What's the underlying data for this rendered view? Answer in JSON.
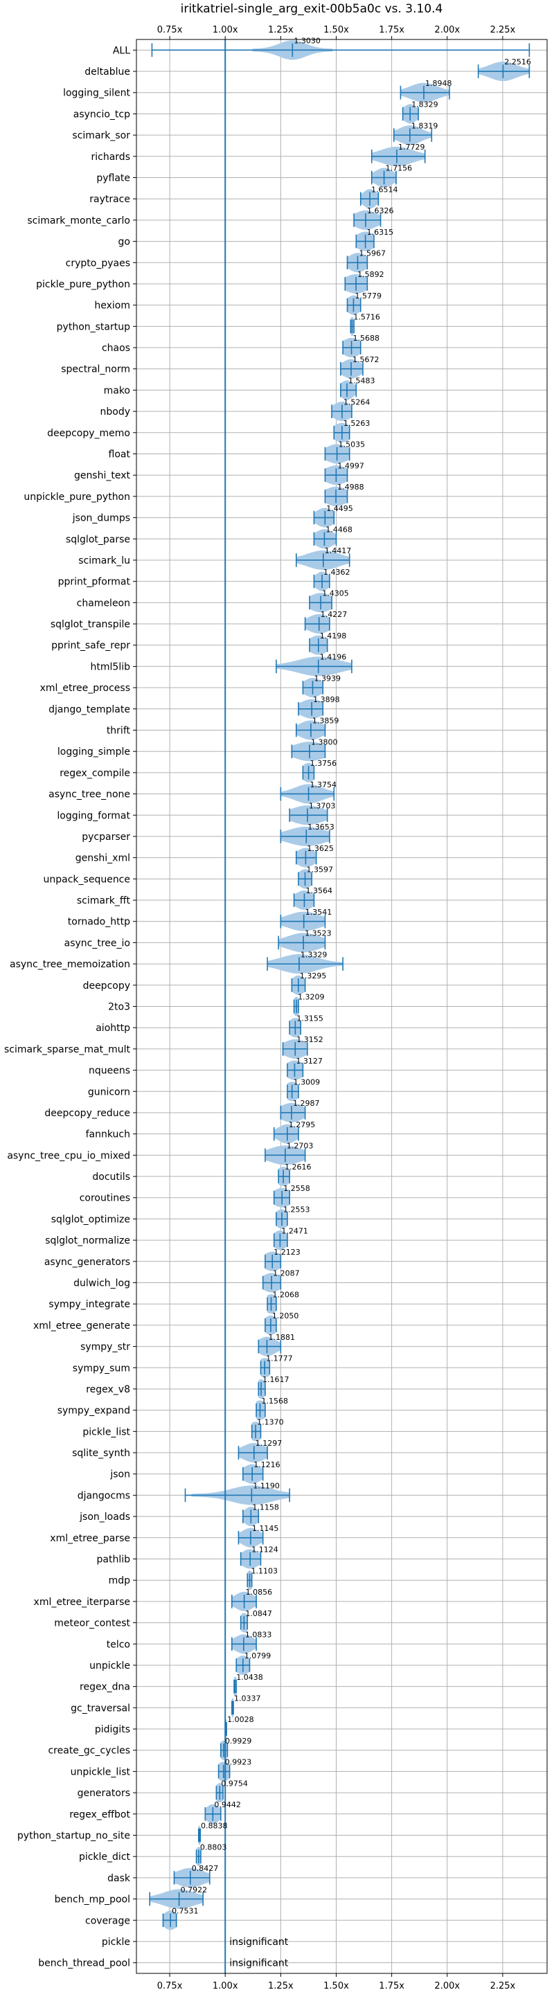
{
  "chart_data": {
    "type": "violin",
    "title": "iritkatriel-single_arg_exit-00b5a0c vs. 3.10.4",
    "xlim": [
      0.6,
      2.45
    ],
    "xticks": [
      0.75,
      1.0,
      1.25,
      1.5,
      1.75,
      2.0,
      2.25
    ],
    "xtick_labels": [
      "0.75x",
      "1.00x",
      "1.25x",
      "1.50x",
      "1.75x",
      "2.00x",
      "2.25x"
    ],
    "reference_line": 1.0,
    "grid": true,
    "colors": {
      "violin": "#a9cbe8",
      "line": "#1f77b4",
      "grid": "#b0b0b0"
    },
    "rows": [
      {
        "name": "ALL",
        "value": 1.303,
        "label": "1.3030",
        "min": 0.67,
        "max": 2.37,
        "spread": 0.06
      },
      {
        "name": "deltablue",
        "value": 2.2516,
        "label": "2.2516",
        "min": 2.14,
        "max": 2.37,
        "spread": 0.06
      },
      {
        "name": "logging_silent",
        "value": 1.8948,
        "label": "1.8948",
        "min": 1.79,
        "max": 2.01,
        "spread": 0.06
      },
      {
        "name": "asyncio_tcp",
        "value": 1.8329,
        "label": "1.8329",
        "min": 1.8,
        "max": 1.87,
        "spread": 0.03
      },
      {
        "name": "scimark_sor",
        "value": 1.8319,
        "label": "1.8319",
        "min": 1.76,
        "max": 1.93,
        "spread": 0.05
      },
      {
        "name": "richards",
        "value": 1.7729,
        "label": "1.7729",
        "min": 1.66,
        "max": 1.9,
        "spread": 0.07
      },
      {
        "name": "pyflate",
        "value": 1.7156,
        "label": "1.7156",
        "min": 1.66,
        "max": 1.77,
        "spread": 0.04
      },
      {
        "name": "raytrace",
        "value": 1.6514,
        "label": "1.6514",
        "min": 1.61,
        "max": 1.69,
        "spread": 0.03
      },
      {
        "name": "scimark_monte_carlo",
        "value": 1.6326,
        "label": "1.6326",
        "min": 1.58,
        "max": 1.7,
        "spread": 0.05
      },
      {
        "name": "go",
        "value": 1.6315,
        "label": "1.6315",
        "min": 1.59,
        "max": 1.67,
        "spread": 0.04
      },
      {
        "name": "crypto_pyaes",
        "value": 1.5967,
        "label": "1.5967",
        "min": 1.55,
        "max": 1.64,
        "spread": 0.04
      },
      {
        "name": "pickle_pure_python",
        "value": 1.5892,
        "label": "1.5892",
        "min": 1.54,
        "max": 1.64,
        "spread": 0.05
      },
      {
        "name": "hexiom",
        "value": 1.5779,
        "label": "1.5779",
        "min": 1.55,
        "max": 1.61,
        "spread": 0.03
      },
      {
        "name": "python_startup",
        "value": 1.5716,
        "label": "1.5716",
        "min": 1.565,
        "max": 1.58,
        "spread": 0.008
      },
      {
        "name": "chaos",
        "value": 1.5688,
        "label": "1.5688",
        "min": 1.53,
        "max": 1.61,
        "spread": 0.04
      },
      {
        "name": "spectral_norm",
        "value": 1.5672,
        "label": "1.5672",
        "min": 1.52,
        "max": 1.62,
        "spread": 0.04
      },
      {
        "name": "mako",
        "value": 1.5483,
        "label": "1.5483",
        "min": 1.52,
        "max": 1.59,
        "spread": 0.03
      },
      {
        "name": "nbody",
        "value": 1.5264,
        "label": "1.5264",
        "min": 1.48,
        "max": 1.57,
        "spread": 0.04
      },
      {
        "name": "deepcopy_memo",
        "value": 1.5263,
        "label": "1.5263",
        "min": 1.49,
        "max": 1.56,
        "spread": 0.04
      },
      {
        "name": "float",
        "value": 1.5035,
        "label": "1.5035",
        "min": 1.45,
        "max": 1.56,
        "spread": 0.05
      },
      {
        "name": "genshi_text",
        "value": 1.4997,
        "label": "1.4997",
        "min": 1.45,
        "max": 1.55,
        "spread": 0.05
      },
      {
        "name": "unpickle_pure_python",
        "value": 1.4988,
        "label": "1.4988",
        "min": 1.45,
        "max": 1.55,
        "spread": 0.05
      },
      {
        "name": "json_dumps",
        "value": 1.4495,
        "label": "1.4495",
        "min": 1.4,
        "max": 1.49,
        "spread": 0.04
      },
      {
        "name": "sqlglot_parse",
        "value": 1.4468,
        "label": "1.4468",
        "min": 1.4,
        "max": 1.5,
        "spread": 0.04
      },
      {
        "name": "scimark_lu",
        "value": 1.4417,
        "label": "1.4417",
        "min": 1.32,
        "max": 1.56,
        "spread": 0.07
      },
      {
        "name": "pprint_pformat",
        "value": 1.4362,
        "label": "1.4362",
        "min": 1.4,
        "max": 1.47,
        "spread": 0.03
      },
      {
        "name": "chameleon",
        "value": 1.4305,
        "label": "1.4305",
        "min": 1.38,
        "max": 1.48,
        "spread": 0.05
      },
      {
        "name": "sqlglot_transpile",
        "value": 1.4227,
        "label": "1.4227",
        "min": 1.36,
        "max": 1.47,
        "spread": 0.05
      },
      {
        "name": "pprint_safe_repr",
        "value": 1.4198,
        "label": "1.4198",
        "min": 1.38,
        "max": 1.46,
        "spread": 0.04
      },
      {
        "name": "html5lib",
        "value": 1.4196,
        "label": "1.4196",
        "min": 1.23,
        "max": 1.57,
        "spread": 0.09
      },
      {
        "name": "xml_etree_process",
        "value": 1.3939,
        "label": "1.3939",
        "min": 1.35,
        "max": 1.44,
        "spread": 0.04
      },
      {
        "name": "django_template",
        "value": 1.3898,
        "label": "1.3898",
        "min": 1.33,
        "max": 1.44,
        "spread": 0.05
      },
      {
        "name": "thrift",
        "value": 1.3859,
        "label": "1.3859",
        "min": 1.32,
        "max": 1.45,
        "spread": 0.05
      },
      {
        "name": "logging_simple",
        "value": 1.38,
        "label": "1.3800",
        "min": 1.3,
        "max": 1.45,
        "spread": 0.07
      },
      {
        "name": "regex_compile",
        "value": 1.3756,
        "label": "1.3756",
        "min": 1.35,
        "max": 1.4,
        "spread": 0.03
      },
      {
        "name": "async_tree_none",
        "value": 1.3754,
        "label": "1.3754",
        "min": 1.25,
        "max": 1.49,
        "spread": 0.06
      },
      {
        "name": "logging_format",
        "value": 1.3703,
        "label": "1.3703",
        "min": 1.29,
        "max": 1.46,
        "spread": 0.07
      },
      {
        "name": "pycparser",
        "value": 1.3653,
        "label": "1.3653",
        "min": 1.25,
        "max": 1.47,
        "spread": 0.08
      },
      {
        "name": "genshi_xml",
        "value": 1.3625,
        "label": "1.3625",
        "min": 1.32,
        "max": 1.41,
        "spread": 0.04
      },
      {
        "name": "unpack_sequence",
        "value": 1.3597,
        "label": "1.3597",
        "min": 1.33,
        "max": 1.39,
        "spread": 0.03
      },
      {
        "name": "scimark_fft",
        "value": 1.3564,
        "label": "1.3564",
        "min": 1.31,
        "max": 1.4,
        "spread": 0.04
      },
      {
        "name": "tornado_http",
        "value": 1.3541,
        "label": "1.3541",
        "min": 1.25,
        "max": 1.45,
        "spread": 0.07
      },
      {
        "name": "async_tree_io",
        "value": 1.3523,
        "label": "1.3523",
        "min": 1.24,
        "max": 1.45,
        "spread": 0.07
      },
      {
        "name": "async_tree_memoization",
        "value": 1.3329,
        "label": "1.3329",
        "min": 1.19,
        "max": 1.53,
        "spread": 0.08
      },
      {
        "name": "deepcopy",
        "value": 1.3295,
        "label": "1.3295",
        "min": 1.3,
        "max": 1.36,
        "spread": 0.03
      },
      {
        "name": "2to3",
        "value": 1.3209,
        "label": "1.3209",
        "min": 1.31,
        "max": 1.33,
        "spread": 0.015
      },
      {
        "name": "aiohttp",
        "value": 1.3155,
        "label": "1.3155",
        "min": 1.29,
        "max": 1.34,
        "spread": 0.03
      },
      {
        "name": "scimark_sparse_mat_mult",
        "value": 1.3152,
        "label": "1.3152",
        "min": 1.26,
        "max": 1.37,
        "spread": 0.05
      },
      {
        "name": "nqueens",
        "value": 1.3127,
        "label": "1.3127",
        "min": 1.28,
        "max": 1.35,
        "spread": 0.04
      },
      {
        "name": "gunicorn",
        "value": 1.3009,
        "label": "1.3009",
        "min": 1.28,
        "max": 1.33,
        "spread": 0.03
      },
      {
        "name": "deepcopy_reduce",
        "value": 1.2987,
        "label": "1.2987",
        "min": 1.25,
        "max": 1.36,
        "spread": 0.05
      },
      {
        "name": "fannkuch",
        "value": 1.2795,
        "label": "1.2795",
        "min": 1.22,
        "max": 1.33,
        "spread": 0.04
      },
      {
        "name": "async_tree_cpu_io_mixed",
        "value": 1.2703,
        "label": "1.2703",
        "min": 1.18,
        "max": 1.36,
        "spread": 0.07
      },
      {
        "name": "docutils",
        "value": 1.2616,
        "label": "1.2616",
        "min": 1.24,
        "max": 1.29,
        "spread": 0.03
      },
      {
        "name": "coroutines",
        "value": 1.2558,
        "label": "1.2558",
        "min": 1.22,
        "max": 1.29,
        "spread": 0.04
      },
      {
        "name": "sqlglot_optimize",
        "value": 1.2553,
        "label": "1.2553",
        "min": 1.23,
        "max": 1.28,
        "spread": 0.03
      },
      {
        "name": "sqlglot_normalize",
        "value": 1.2471,
        "label": "1.2471",
        "min": 1.22,
        "max": 1.28,
        "spread": 0.03
      },
      {
        "name": "async_generators",
        "value": 1.2123,
        "label": "1.2123",
        "min": 1.18,
        "max": 1.25,
        "spread": 0.04
      },
      {
        "name": "dulwich_log",
        "value": 1.2087,
        "label": "1.2087",
        "min": 1.17,
        "max": 1.25,
        "spread": 0.04
      },
      {
        "name": "sympy_integrate",
        "value": 1.2068,
        "label": "1.2068",
        "min": 1.19,
        "max": 1.23,
        "spread": 0.03
      },
      {
        "name": "xml_etree_generate",
        "value": 1.205,
        "label": "1.2050",
        "min": 1.18,
        "max": 1.23,
        "spread": 0.03
      },
      {
        "name": "sympy_str",
        "value": 1.1881,
        "label": "1.1881",
        "min": 1.15,
        "max": 1.25,
        "spread": 0.04
      },
      {
        "name": "sympy_sum",
        "value": 1.1777,
        "label": "1.1777",
        "min": 1.16,
        "max": 1.2,
        "spread": 0.03
      },
      {
        "name": "regex_v8",
        "value": 1.1617,
        "label": "1.1617",
        "min": 1.15,
        "max": 1.18,
        "spread": 0.02
      },
      {
        "name": "sympy_expand",
        "value": 1.1568,
        "label": "1.1568",
        "min": 1.14,
        "max": 1.18,
        "spread": 0.03
      },
      {
        "name": "pickle_list",
        "value": 1.137,
        "label": "1.1370",
        "min": 1.12,
        "max": 1.16,
        "spread": 0.03
      },
      {
        "name": "sqlite_synth",
        "value": 1.1297,
        "label": "1.1297",
        "min": 1.06,
        "max": 1.19,
        "spread": 0.05
      },
      {
        "name": "json",
        "value": 1.1216,
        "label": "1.1216",
        "min": 1.08,
        "max": 1.17,
        "spread": 0.04
      },
      {
        "name": "djangocms",
        "value": 1.119,
        "label": "1.1190",
        "min": 0.82,
        "max": 1.29,
        "spread": 0.09
      },
      {
        "name": "json_loads",
        "value": 1.1158,
        "label": "1.1158",
        "min": 1.08,
        "max": 1.15,
        "spread": 0.03
      },
      {
        "name": "xml_etree_parse",
        "value": 1.1145,
        "label": "1.1145",
        "min": 1.06,
        "max": 1.17,
        "spread": 0.04
      },
      {
        "name": "pathlib",
        "value": 1.1124,
        "label": "1.1124",
        "min": 1.07,
        "max": 1.16,
        "spread": 0.04
      },
      {
        "name": "mdp",
        "value": 1.1103,
        "label": "1.1103",
        "min": 1.1,
        "max": 1.12,
        "spread": 0.015
      },
      {
        "name": "xml_etree_iterparse",
        "value": 1.0856,
        "label": "1.0856",
        "min": 1.03,
        "max": 1.14,
        "spread": 0.04
      },
      {
        "name": "meteor_contest",
        "value": 1.0847,
        "label": "1.0847",
        "min": 1.07,
        "max": 1.1,
        "spread": 0.02
      },
      {
        "name": "telco",
        "value": 1.0833,
        "label": "1.0833",
        "min": 1.03,
        "max": 1.14,
        "spread": 0.04
      },
      {
        "name": "unpickle",
        "value": 1.0799,
        "label": "1.0799",
        "min": 1.05,
        "max": 1.11,
        "spread": 0.03
      },
      {
        "name": "regex_dna",
        "value": 1.0438,
        "label": "1.0438",
        "min": 1.04,
        "max": 1.05,
        "spread": 0.012
      },
      {
        "name": "gc_traversal",
        "value": 1.0337,
        "label": "1.0337",
        "min": 1.03,
        "max": 1.037,
        "spread": 0.006
      },
      {
        "name": "pidigits",
        "value": 1.0028,
        "label": "1.0028",
        "min": 1.0,
        "max": 1.006,
        "spread": 0.005
      },
      {
        "name": "create_gc_cycles",
        "value": 0.9929,
        "label": "0.9929",
        "min": 0.98,
        "max": 1.01,
        "spread": 0.02
      },
      {
        "name": "unpickle_list",
        "value": 0.9923,
        "label": "0.9923",
        "min": 0.97,
        "max": 1.02,
        "spread": 0.03
      },
      {
        "name": "generators",
        "value": 0.9754,
        "label": "0.9754",
        "min": 0.96,
        "max": 0.99,
        "spread": 0.02
      },
      {
        "name": "regex_effbot",
        "value": 0.9442,
        "label": "0.9442",
        "min": 0.91,
        "max": 0.98,
        "spread": 0.03
      },
      {
        "name": "python_startup_no_site",
        "value": 0.8838,
        "label": "0.8838",
        "min": 0.88,
        "max": 0.888,
        "spread": 0.006
      },
      {
        "name": "pickle_dict",
        "value": 0.8803,
        "label": "0.8803",
        "min": 0.87,
        "max": 0.89,
        "spread": 0.012
      },
      {
        "name": "dask",
        "value": 0.8427,
        "label": "0.8427",
        "min": 0.77,
        "max": 0.93,
        "spread": 0.06
      },
      {
        "name": "bench_mp_pool",
        "value": 0.7922,
        "label": "0.7922",
        "min": 0.66,
        "max": 0.9,
        "spread": 0.07
      },
      {
        "name": "coverage",
        "value": 0.7531,
        "label": "0.7531",
        "min": 0.72,
        "max": 0.78,
        "spread": 0.03
      },
      {
        "name": "pickle",
        "value": null,
        "label": "insignificant"
      },
      {
        "name": "bench_thread_pool",
        "value": null,
        "label": "insignificant"
      }
    ]
  }
}
